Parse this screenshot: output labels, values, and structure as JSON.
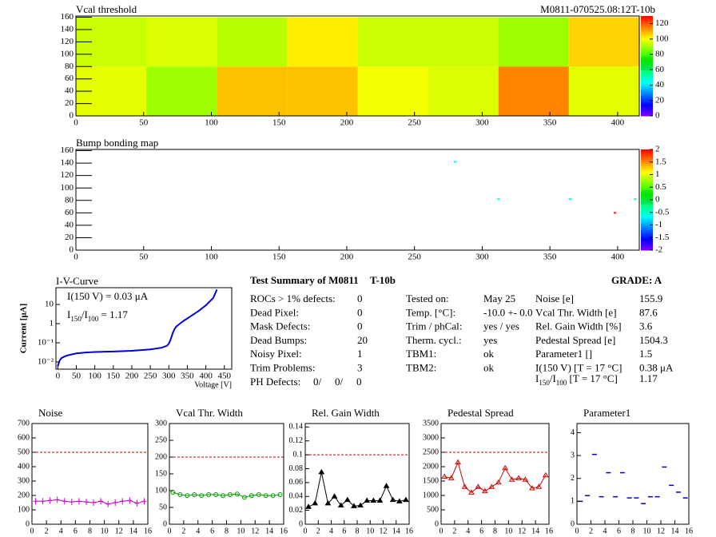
{
  "chart_data": [
    {
      "type": "heatmap",
      "title": "Vcal threshold",
      "subtitle": "M0811-070525.08:12T-10b",
      "x": [
        0,
        52,
        104,
        156,
        208,
        260,
        312,
        364,
        416
      ],
      "y": [
        0,
        80,
        160
      ],
      "values": [
        [
          98,
          90,
          108,
          108,
          100,
          97,
          115,
          98
        ],
        [
          95,
          97,
          93,
          103,
          95,
          95,
          90,
          106
        ]
      ],
      "xlim": [
        0,
        416
      ],
      "ylim": [
        0,
        162
      ],
      "xticks": [
        0,
        50,
        100,
        150,
        200,
        250,
        300,
        350,
        400
      ],
      "yticks": [
        0,
        20,
        40,
        60,
        80,
        100,
        120,
        140,
        160
      ],
      "zlim": [
        0,
        130
      ],
      "zticks": [
        0,
        20,
        40,
        60,
        80,
        100,
        120
      ]
    },
    {
      "type": "scatter-map",
      "title": "Bump bonding map",
      "x": [
        280,
        312,
        365,
        398,
        413
      ],
      "y": [
        142,
        82,
        82,
        60,
        82
      ],
      "values": [
        -0.6,
        -0.6,
        -0.6,
        1.9,
        -0.3
      ],
      "xlim": [
        0,
        416
      ],
      "ylim": [
        0,
        162
      ],
      "xticks": [
        0,
        50,
        100,
        150,
        200,
        250,
        300,
        350,
        400
      ],
      "yticks": [
        0,
        20,
        40,
        60,
        80,
        100,
        120,
        140,
        160
      ],
      "zlim": [
        -2,
        2
      ],
      "zticks": [
        -2,
        -1.5,
        -1,
        -0.5,
        0,
        0.5,
        1,
        1.5,
        2
      ]
    },
    {
      "type": "line",
      "title": "I-V-Curve",
      "log_y": true,
      "color": "#0000dd",
      "marker": "none",
      "lines": true,
      "x": [
        0,
        5,
        10,
        20,
        30,
        50,
        75,
        100,
        150,
        200,
        250,
        280,
        295,
        300,
        305,
        310,
        315,
        320,
        330,
        340,
        360,
        380,
        400,
        420,
        430
      ],
      "values": [
        0.006,
        0.012,
        0.016,
        0.02,
        0.023,
        0.028,
        0.031,
        0.033,
        0.035,
        0.038,
        0.045,
        0.055,
        0.07,
        0.09,
        0.15,
        0.3,
        0.5,
        0.7,
        1.0,
        1.4,
        2.5,
        4.5,
        9,
        22,
        60
      ],
      "xlim": [
        -5,
        470
      ],
      "ylim": [
        0.0042,
        75
      ],
      "xticks": [
        0,
        50,
        100,
        150,
        200,
        250,
        300,
        350,
        400,
        450
      ],
      "yticks": [
        {
          "value": 0.01,
          "label": "10⁻²"
        },
        {
          "value": 0.1,
          "label": "10⁻¹"
        },
        1,
        10
      ],
      "xlabel": "Voltage [V]",
      "ylabel": "Current [μA]",
      "annotation": "I(150 V) = 0.03 μA",
      "annotation_parts": [
        "I",
        "150",
        "/I",
        "100",
        " =  1.17"
      ]
    },
    {
      "type": "line",
      "title": "Noise",
      "color": "#cc00cc",
      "marker": "cross",
      "lines": true,
      "ref_line": 500,
      "x": [
        0.5,
        1.5,
        2.5,
        3.5,
        4.5,
        5.5,
        6.5,
        7.5,
        8.5,
        9.5,
        10.5,
        11.5,
        12.5,
        13.5,
        14.5,
        15.5
      ],
      "values": [
        160,
        160,
        165,
        170,
        160,
        155,
        160,
        155,
        150,
        160,
        140,
        150,
        160,
        165,
        145,
        160
      ],
      "xlim": [
        0,
        16
      ],
      "ylim": [
        0,
        700
      ],
      "xticks": [
        0,
        2,
        4,
        6,
        8,
        10,
        12,
        14,
        16
      ],
      "yticks": [
        0,
        100,
        200,
        300,
        400,
        500,
        600,
        700
      ]
    },
    {
      "type": "line",
      "title": "Vcal Thr. Width",
      "color": "#009900",
      "marker": "circle",
      "lines": true,
      "ref_line": 200,
      "x": [
        0.5,
        1.5,
        2.5,
        3.5,
        4.5,
        5.5,
        6.5,
        7.5,
        8.5,
        9.5,
        10.5,
        11.5,
        12.5,
        13.5,
        14.5,
        15.5
      ],
      "values": [
        95,
        88,
        85,
        88,
        85,
        88,
        88,
        85,
        88,
        90,
        80,
        85,
        88,
        85,
        85,
        88
      ],
      "xlim": [
        0,
        16
      ],
      "ylim": [
        0,
        300
      ],
      "xticks": [
        0,
        2,
        4,
        6,
        8,
        10,
        12,
        14,
        16
      ],
      "yticks": [
        0,
        50,
        100,
        150,
        200,
        250,
        300
      ]
    },
    {
      "type": "line",
      "title": "Rel. Gain Width",
      "color": "#000000",
      "marker": "triangle",
      "lines": true,
      "ref_line": 0.1,
      "x": [
        0.5,
        1.5,
        2.5,
        3.5,
        4.5,
        5.5,
        6.5,
        7.5,
        8.5,
        9.5,
        10.5,
        11.5,
        12.5,
        13.5,
        14.5,
        15.5
      ],
      "values": [
        0.025,
        0.03,
        0.075,
        0.03,
        0.04,
        0.027,
        0.035,
        0.026,
        0.027,
        0.034,
        0.034,
        0.034,
        0.055,
        0.035,
        0.033,
        0.035
      ],
      "xlim": [
        0,
        16
      ],
      "ylim": [
        0,
        0.145
      ],
      "xticks": [
        0,
        2,
        4,
        6,
        8,
        10,
        12,
        14,
        16
      ],
      "yticks": [
        0,
        0.02,
        0.04,
        0.06,
        0.08,
        0.1,
        0.12,
        0.14
      ]
    },
    {
      "type": "line",
      "title": "Pedestal Spread",
      "color": "#cc0000",
      "marker": "triangle",
      "lines": true,
      "ref_line": 2500,
      "x": [
        0.5,
        1.5,
        2.5,
        3.5,
        4.5,
        5.5,
        6.5,
        7.5,
        8.5,
        9.5,
        10.5,
        11.5,
        12.5,
        13.5,
        14.5,
        15.5
      ],
      "values": [
        1650,
        1600,
        2150,
        1300,
        1100,
        1300,
        1150,
        1300,
        1450,
        1950,
        1550,
        1600,
        1550,
        1250,
        1300,
        1700
      ],
      "xlim": [
        0,
        16
      ],
      "ylim": [
        0,
        3500
      ],
      "xticks": [
        0,
        2,
        4,
        6,
        8,
        10,
        12,
        14,
        16
      ],
      "yticks": [
        0,
        500,
        1000,
        1500,
        2000,
        2500,
        3000,
        3500
      ]
    },
    {
      "type": "line",
      "title": "Parameter1",
      "color": "#0000cc",
      "marker": "dash",
      "lines": false,
      "x": [
        0.5,
        1.5,
        2.5,
        3.5,
        4.5,
        5.5,
        6.5,
        7.5,
        8.5,
        9.5,
        10.5,
        11.5,
        12.5,
        13.5,
        14.5,
        15.5
      ],
      "values": [
        1.0,
        1.25,
        3.05,
        1.2,
        2.25,
        1.2,
        2.25,
        1.15,
        1.15,
        0.9,
        1.2,
        1.2,
        2.5,
        1.7,
        1.4,
        1.15
      ],
      "xlim": [
        0,
        16
      ],
      "ylim": [
        0,
        4.4
      ],
      "xticks": [
        0,
        2,
        4,
        6,
        8,
        10,
        12,
        14,
        16
      ],
      "yticks": [
        0,
        1,
        2,
        3,
        4
      ]
    }
  ],
  "summary": {
    "title": "Test Summary of M0811",
    "module": "T-10b",
    "grade": "GRADE:  A",
    "left": [
      [
        "ROCs > 1% defects:",
        "0"
      ],
      [
        "Dead Pixel:",
        "0"
      ],
      [
        "Mask Defects:",
        "0"
      ],
      [
        "Dead Bumps:",
        "20"
      ],
      [
        "Noisy Pixel:",
        "1"
      ],
      [
        "Trim Problems:",
        "3"
      ]
    ],
    "ph_label": "PH Defects:",
    "ph_values": [
      "0/",
      "0/",
      "0"
    ],
    "ph_colors": [
      "#000000",
      "#e00000",
      "#0000cc"
    ],
    "middle": [
      [
        "Tested on:",
        "May 25"
      ],
      [
        "Temp. [°C]:",
        "-10.0 +- 0.0"
      ],
      [
        "Trim / phCal:",
        "yes / yes"
      ],
      [
        "Therm. cycl.:",
        "yes"
      ],
      [
        "TBM1:",
        "ok"
      ],
      [
        "TBM2:",
        "ok"
      ]
    ],
    "right": [
      [
        "Noise [e]",
        "155.9"
      ],
      [
        "Vcal Thr. Width [e]",
        "87.6"
      ],
      [
        "Rel. Gain Width [%]",
        "3.6"
      ],
      [
        "Pedestal Spread [e]",
        "1504.3"
      ],
      [
        "Parameter1 []",
        "1.5"
      ],
      [
        "I(150 V) [T = 17 °C]",
        "0.38 μA"
      ]
    ],
    "ratio_parts": [
      "I",
      "150",
      "/I",
      "100",
      " [T = 17 °C]"
    ],
    "ratio_value": "1.17"
  }
}
